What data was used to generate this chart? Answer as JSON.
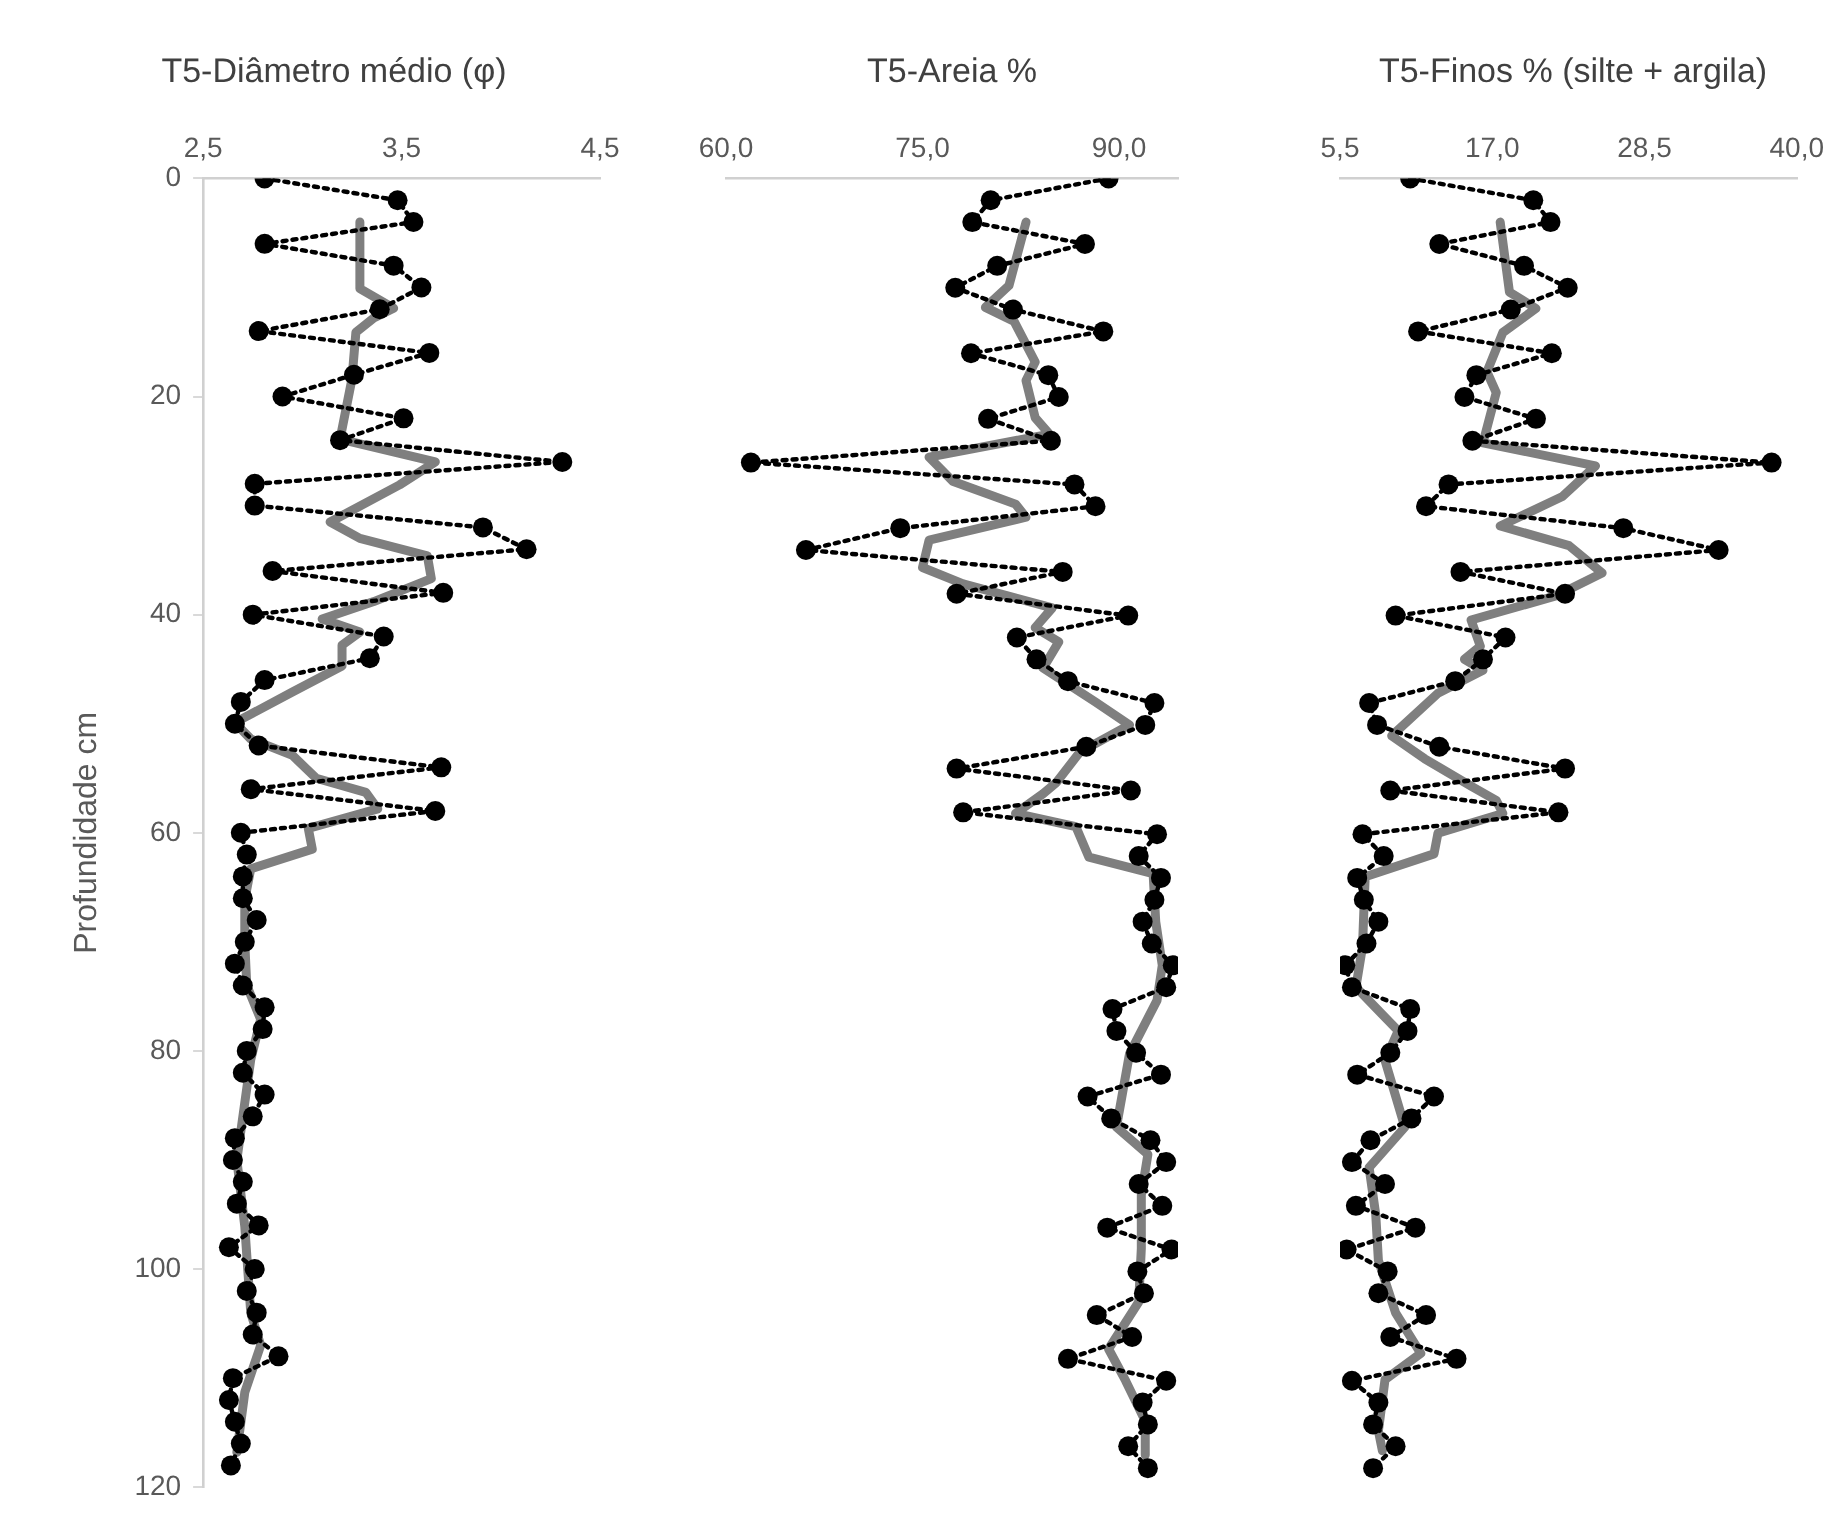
{
  "chart_data": [
    {
      "type": "line",
      "title": "T5-Diâmetro médio (φ)",
      "ylabel": "Profundidade cm",
      "orientation": "horizontal",
      "xlim": [
        2.5,
        4.5
      ],
      "xticks": [
        {
          "value": 2.5,
          "label": "2,5"
        },
        {
          "value": 3.5,
          "label": "3,5"
        },
        {
          "value": 4.5,
          "label": "4,5"
        }
      ],
      "ylim": [
        120,
        0
      ],
      "yticks": [
        0,
        20,
        40,
        60,
        80,
        100,
        120
      ],
      "grid": false,
      "x": [
        0,
        2,
        4,
        6,
        8,
        10,
        12,
        14,
        16,
        18,
        20,
        22,
        24,
        26,
        28,
        30,
        32,
        34,
        36,
        38,
        40,
        42,
        44,
        46,
        48,
        50,
        52,
        54,
        56,
        58,
        60,
        62,
        64,
        66,
        68,
        70,
        72,
        74,
        76,
        78,
        80,
        82,
        84,
        86,
        88,
        90,
        92,
        94,
        96,
        98,
        100,
        102,
        104,
        106,
        108,
        110,
        112,
        114,
        116,
        118
      ],
      "series": [
        {
          "color": "#000000",
          "marker": "circle",
          "line_style": "dotted",
          "values": [
            2.81,
            3.48,
            3.56,
            2.81,
            3.46,
            3.6,
            3.39,
            2.78,
            3.64,
            3.26,
            2.9,
            3.51,
            3.19,
            4.31,
            2.76,
            2.76,
            3.91,
            4.13,
            2.85,
            3.71,
            2.75,
            3.41,
            3.34,
            2.81,
            2.69,
            2.66,
            2.78,
            3.7,
            2.74,
            3.67,
            2.69,
            2.72,
            2.7,
            2.7,
            2.77,
            2.71,
            2.66,
            2.7,
            2.81,
            2.8,
            2.72,
            2.7,
            2.81,
            2.75,
            2.66,
            2.65,
            2.7,
            2.67,
            2.78,
            2.63,
            2.76,
            2.72,
            2.77,
            2.75,
            2.88,
            2.65,
            2.63,
            2.66,
            2.69,
            2.64
          ]
        },
        {
          "color": "#7f7f7f",
          "marker": "none",
          "line_style": "solid",
          "x": [
            4,
            10.1,
            11.9,
            12.8,
            14.1,
            18.4,
            23.9,
            26,
            28.1,
            31.5,
            33,
            34.6,
            36.7,
            38.8,
            40.4,
            41.6,
            42.8,
            44.7,
            47.1,
            49.9,
            51.4,
            52.9,
            55,
            56.3,
            57.8,
            59.6,
            61.5,
            63.3,
            66.1,
            70.1,
            74,
            77.1,
            80.8,
            90,
            96.1,
            104,
            107,
            111.3,
            116.8
          ],
          "values": [
            3.29,
            3.29,
            3.46,
            3.36,
            3.27,
            3.25,
            3.19,
            3.67,
            3.49,
            3.14,
            3.29,
            3.63,
            3.65,
            3.36,
            3.1,
            3.29,
            3.2,
            3.2,
            2.95,
            2.66,
            2.74,
            2.95,
            3.07,
            3.32,
            3.38,
            3.03,
            3.05,
            2.74,
            2.71,
            2.71,
            2.72,
            2.79,
            2.74,
            2.67,
            2.71,
            2.74,
            2.79,
            2.71,
            2.67
          ]
        }
      ]
    },
    {
      "type": "line",
      "title": "T5-Areia %",
      "orientation": "horizontal",
      "xlim": [
        60,
        94.5
      ],
      "xticks": [
        {
          "value": 60,
          "label": "60,0"
        },
        {
          "value": 75,
          "label": "75,0"
        },
        {
          "value": 90,
          "label": "90,0"
        }
      ],
      "ylim": [
        120,
        0
      ],
      "tick_labels": "x",
      "grid": false,
      "x": [
        0,
        2,
        4,
        6,
        8,
        10,
        12,
        14,
        16,
        18,
        20,
        22,
        24,
        26,
        28,
        30,
        32,
        34,
        36,
        38,
        40,
        42,
        44,
        46,
        48,
        50,
        52,
        54,
        56,
        58,
        60,
        62,
        64,
        66,
        68,
        70,
        72,
        74,
        76,
        78,
        80,
        82,
        84,
        86,
        88,
        90,
        92,
        94,
        96,
        98,
        100,
        102,
        104,
        106,
        108,
        110,
        112,
        114,
        116,
        118
      ],
      "series": [
        {
          "color": "#000000",
          "marker": "circle",
          "line_style": "dotted",
          "values": [
            89.2,
            80.2,
            78.8,
            87.4,
            80.7,
            77.5,
            81.9,
            88.8,
            78.7,
            84.6,
            85.4,
            80.0,
            84.8,
            61.9,
            86.6,
            88.2,
            73.3,
            66.1,
            85.7,
            77.6,
            90.7,
            82.2,
            83.7,
            86.1,
            92.7,
            92.0,
            87.5,
            77.6,
            90.9,
            78.1,
            92.9,
            91.5,
            93.2,
            92.7,
            91.8,
            92.5,
            94.1,
            93.6,
            89.5,
            89.8,
            91.3,
            93.2,
            87.6,
            89.4,
            92.4,
            93.6,
            91.5,
            93.3,
            89.1,
            94.0,
            91.4,
            91.9,
            88.3,
            91.0,
            86.1,
            93.6,
            91.8,
            92.2,
            90.7,
            92.2
          ]
        },
        {
          "color": "#7f7f7f",
          "marker": "none",
          "line_style": "solid",
          "x": [
            4,
            9.8,
            11.8,
            13.1,
            16.8,
            18.5,
            21.9,
            23.4,
            25.5,
            27.7,
            29.8,
            31,
            33.1,
            35.6,
            37.1,
            39.3,
            41.1,
            42.4,
            44.8,
            47.9,
            50,
            52.5,
            55.3,
            56.3,
            58.1,
            59.3,
            62.1,
            63.6,
            68,
            72,
            75.2,
            80.1,
            86.8,
            89.3,
            93,
            97.9,
            102.8,
            107.1,
            110,
            113.7,
            116.8
          ],
          "values": [
            82.9,
            81.6,
            79.8,
            82.0,
            83.6,
            82.9,
            83.6,
            84.7,
            75.5,
            77.3,
            82.1,
            82.9,
            75.5,
            75.0,
            78.1,
            84.9,
            83.6,
            85.4,
            84.2,
            88.2,
            90.8,
            87.0,
            85.2,
            84.2,
            82.1,
            86.7,
            87.7,
            92.6,
            92.8,
            93.3,
            92.9,
            90.8,
            89.8,
            92.2,
            91.7,
            91.7,
            91.5,
            89.2,
            90.5,
            92.0,
            92.0
          ]
        }
      ]
    },
    {
      "type": "line",
      "title": "T5-Finos % (silte + argila)",
      "orientation": "horizontal",
      "xlim": [
        5.5,
        40
      ],
      "xticks": [
        {
          "value": 5.5,
          "label": "5,5"
        },
        {
          "value": 17,
          "label": "17,0"
        },
        {
          "value": 28.5,
          "label": "28,5"
        },
        {
          "value": 40,
          "label": "40,0"
        }
      ],
      "ylim": [
        120,
        0
      ],
      "tick_labels": "x",
      "grid": false,
      "x": [
        0,
        2,
        4,
        6,
        8,
        10,
        12,
        14,
        16,
        18,
        20,
        22,
        24,
        26,
        28,
        30,
        32,
        34,
        36,
        38,
        40,
        42,
        44,
        46,
        48,
        50,
        52,
        54,
        56,
        58,
        60,
        62,
        64,
        66,
        68,
        70,
        72,
        74,
        76,
        78,
        80,
        82,
        84,
        86,
        88,
        90,
        92,
        94,
        96,
        98,
        100,
        102,
        104,
        106,
        108,
        110,
        112,
        114,
        116,
        118
      ],
      "series": [
        {
          "color": "#000000",
          "marker": "circle",
          "line_style": "dotted",
          "values": [
            10.8,
            20.1,
            21.4,
            13.0,
            19.4,
            22.7,
            18.4,
            11.4,
            21.5,
            15.8,
            14.9,
            20.3,
            15.5,
            38.1,
            13.7,
            12.0,
            26.9,
            34.1,
            14.6,
            22.5,
            9.7,
            18.0,
            16.3,
            14.2,
            7.7,
            8.3,
            13.0,
            22.5,
            9.3,
            22.0,
            7.2,
            8.8,
            6.8,
            7.3,
            8.4,
            7.5,
            5.9,
            6.4,
            10.8,
            10.6,
            9.3,
            6.8,
            12.6,
            10.9,
            7.8,
            6.4,
            8.9,
            6.7,
            11.2,
            6.0,
            9.1,
            8.4,
            12.0,
            9.3,
            14.3,
            6.4,
            8.4,
            8.0,
            9.7,
            8.0
          ]
        },
        {
          "color": "#7f7f7f",
          "marker": "none",
          "line_style": "solid",
          "x": [
            4,
            10.4,
            11.9,
            14.1,
            17.7,
            19.6,
            24.2,
            26.3,
            29.1,
            31.8,
            33.6,
            36.1,
            38.2,
            40.4,
            42.8,
            44,
            45,
            47.1,
            51,
            53.1,
            55.6,
            56.9,
            58.1,
            59.9,
            61.8,
            63.9,
            70.3,
            74,
            78,
            80.7,
            86.8,
            90.5,
            94.8,
            99,
            103.8,
            107.5,
            109.9,
            114.6,
            116.4
          ],
          "values": [
            17.6,
            18.3,
            20.3,
            17.8,
            16.6,
            17.3,
            16.3,
            24.8,
            22.3,
            17.6,
            22.8,
            25.3,
            21.8,
            15.4,
            16.1,
            14.9,
            16.3,
            12.9,
            9.4,
            11.9,
            15.4,
            17.3,
            17.8,
            12.9,
            12.6,
            7.4,
            7.2,
            6.7,
            9.9,
            8.9,
            10.4,
            7.7,
            8.2,
            8.4,
            9.7,
            11.6,
            8.9,
            8.4,
            8.7
          ]
        }
      ]
    }
  ]
}
